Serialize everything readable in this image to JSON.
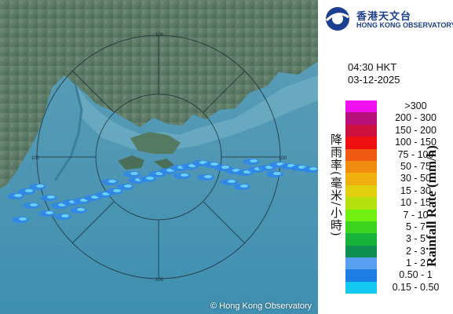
{
  "header": {
    "logo_zh": "香港天文台",
    "logo_en": "HONG KONG OBSERVATORY"
  },
  "timestamp": {
    "time": "04:30 HKT",
    "date": "03-12-2025"
  },
  "legend": {
    "title_zh": "降雨率(毫米/小時)",
    "title_en": "Rainfall Rate (mm/h)",
    "items": [
      {
        "label": ">300",
        "color": "#ee10ee"
      },
      {
        "label": "200 - 300",
        "color": "#b8107a"
      },
      {
        "label": "150 - 200",
        "color": "#cc1040"
      },
      {
        "label": "100 - 150",
        "color": "#ee1010"
      },
      {
        "label": "75 - 100",
        "color": "#f05a10"
      },
      {
        "label": "50 - 75",
        "color": "#f08c10"
      },
      {
        "label": "30 - 50",
        "color": "#f0b010"
      },
      {
        "label": "15 - 30",
        "color": "#e2d010"
      },
      {
        "label": "10 - 15",
        "color": "#b4e010"
      },
      {
        "label": "7 - 10",
        "color": "#70f010"
      },
      {
        "label": "5 - 7",
        "color": "#3cd41e"
      },
      {
        "label": "3 - 5",
        "color": "#18b43a"
      },
      {
        "label": "2 - 3",
        "color": "#0e8e50"
      },
      {
        "label": "1 - 2",
        "color": "#5aa0f0"
      },
      {
        "label": "0.50 - 1",
        "color": "#1e7ee6"
      },
      {
        "label": "0.15 - 0.50",
        "color": "#12c8f0"
      }
    ]
  },
  "map": {
    "range_labels": [
      "100",
      "100",
      "100",
      "100"
    ],
    "copyright": "© Hong Kong Observatory"
  }
}
